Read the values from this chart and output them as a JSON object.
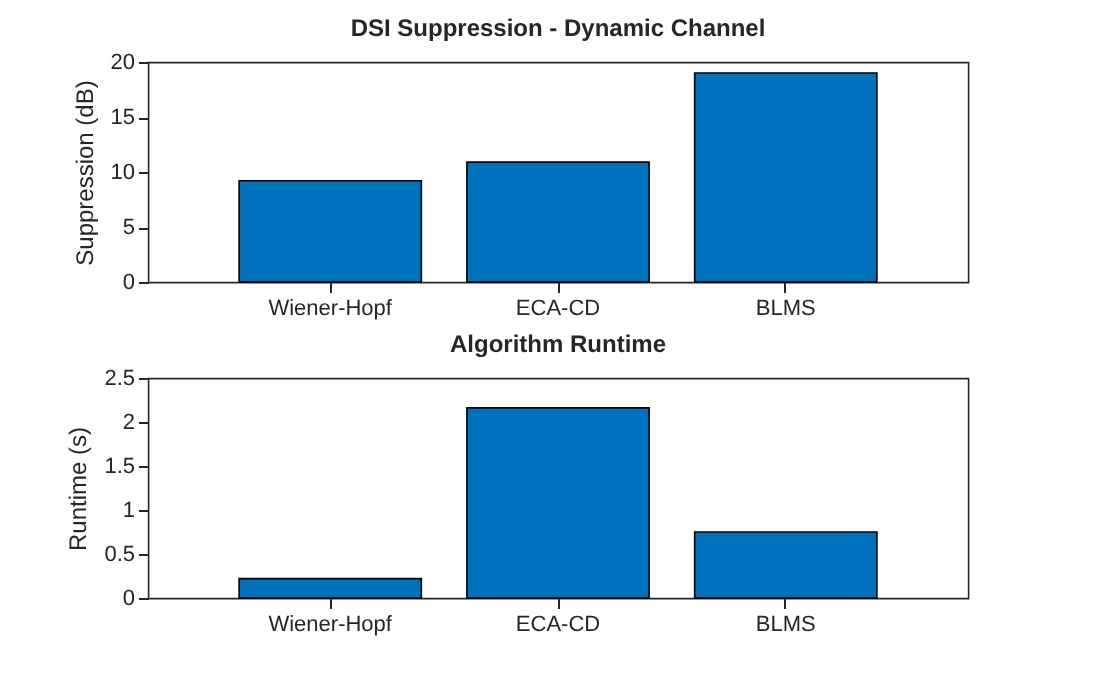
{
  "chart_data": [
    {
      "type": "bar",
      "title": "DSI Suppression - Dynamic Channel",
      "ylabel": "Suppression (dB)",
      "categories": [
        "Wiener-Hopf",
        "ECA-CD",
        "BLMS"
      ],
      "values": [
        9.2,
        10.9,
        19.0
      ],
      "color": "#0072bd",
      "ylim": [
        0,
        20
      ],
      "yticks": [
        0,
        5,
        10,
        15,
        20
      ],
      "grid": false
    },
    {
      "type": "bar",
      "title": "Algorithm Runtime",
      "ylabel": "Runtime (s)",
      "categories": [
        "Wiener-Hopf",
        "ECA-CD",
        "BLMS"
      ],
      "values": [
        0.22,
        2.16,
        0.75
      ],
      "color": "#0072bd",
      "ylim": [
        0,
        2.5
      ],
      "yticks": [
        0,
        0.5,
        1,
        1.5,
        2,
        2.5
      ],
      "grid": false
    }
  ]
}
